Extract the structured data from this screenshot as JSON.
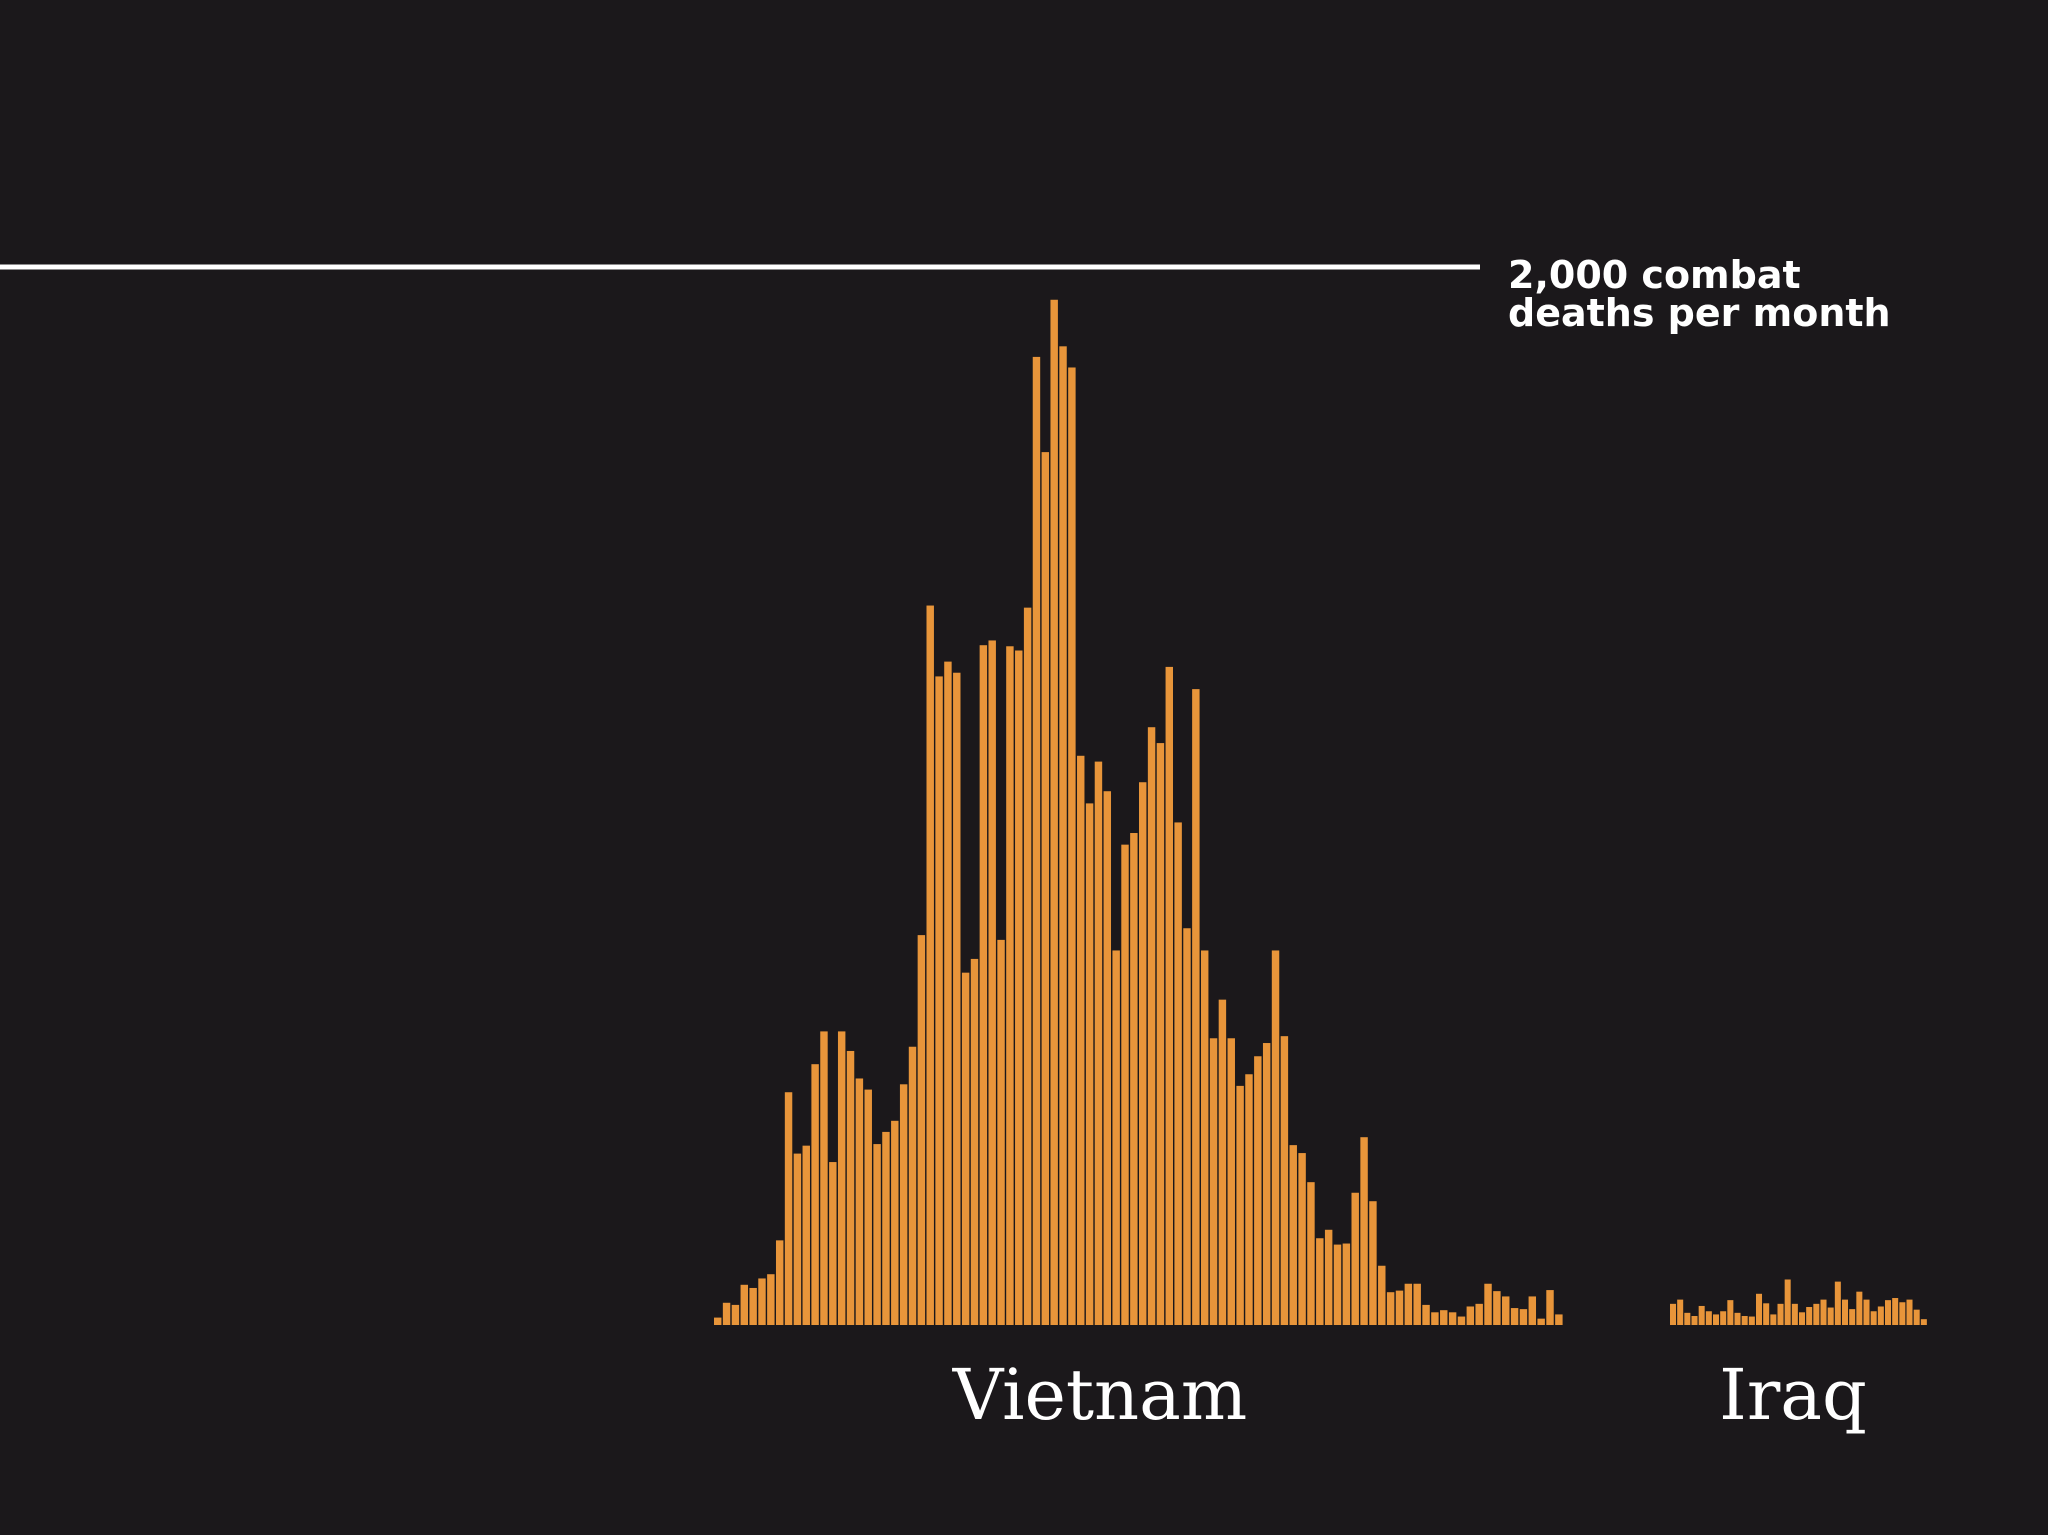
{
  "chart_data": {
    "type": "bar",
    "bar_color": "#e8953a",
    "background_color": "#1b181b",
    "reference_line": {
      "value": 2000,
      "color": "#ffffff",
      "label_lines": [
        "2,000 combat",
        "deaths per month"
      ]
    },
    "ylim": [
      0,
      2240
    ],
    "groups": [
      {
        "name": "Vietnam",
        "values": [
          14,
          42,
          38,
          76,
          70,
          88,
          96,
          160,
          440,
          324,
          339,
          493,
          555,
          308,
          555,
          518,
          466,
          445,
          342,
          365,
          386,
          455,
          526,
          737,
          1360,
          1226,
          1254,
          1233,
          666,
          692,
          1285,
          1294,
          728,
          1283,
          1275,
          1356,
          1830,
          1650,
          1938,
          1850,
          1810,
          1076,
          986,
          1065,
          1009,
          708,
          908,
          930,
          1026,
          1130,
          1100,
          1244,
          950,
          750,
          1202,
          708,
          542,
          615,
          542,
          452,
          474,
          508,
          533,
          708,
          546,
          340,
          325,
          270,
          164,
          180,
          152,
          154,
          250,
          355,
          234,
          112,
          62,
          65,
          78,
          78,
          38,
          24,
          28,
          24,
          16,
          35,
          40,
          78,
          64,
          54,
          32,
          30,
          54,
          12,
          66,
          20
        ]
      },
      {
        "name": "Iraq",
        "values": [
          40,
          48,
          23,
          17,
          36,
          26,
          20,
          26,
          47,
          23,
          17,
          16,
          59,
          41,
          20,
          40,
          86,
          40,
          24,
          34,
          40,
          48,
          33,
          82,
          48,
          30,
          63,
          48,
          26,
          35,
          47,
          51,
          43,
          48,
          29,
          11
        ]
      }
    ]
  }
}
